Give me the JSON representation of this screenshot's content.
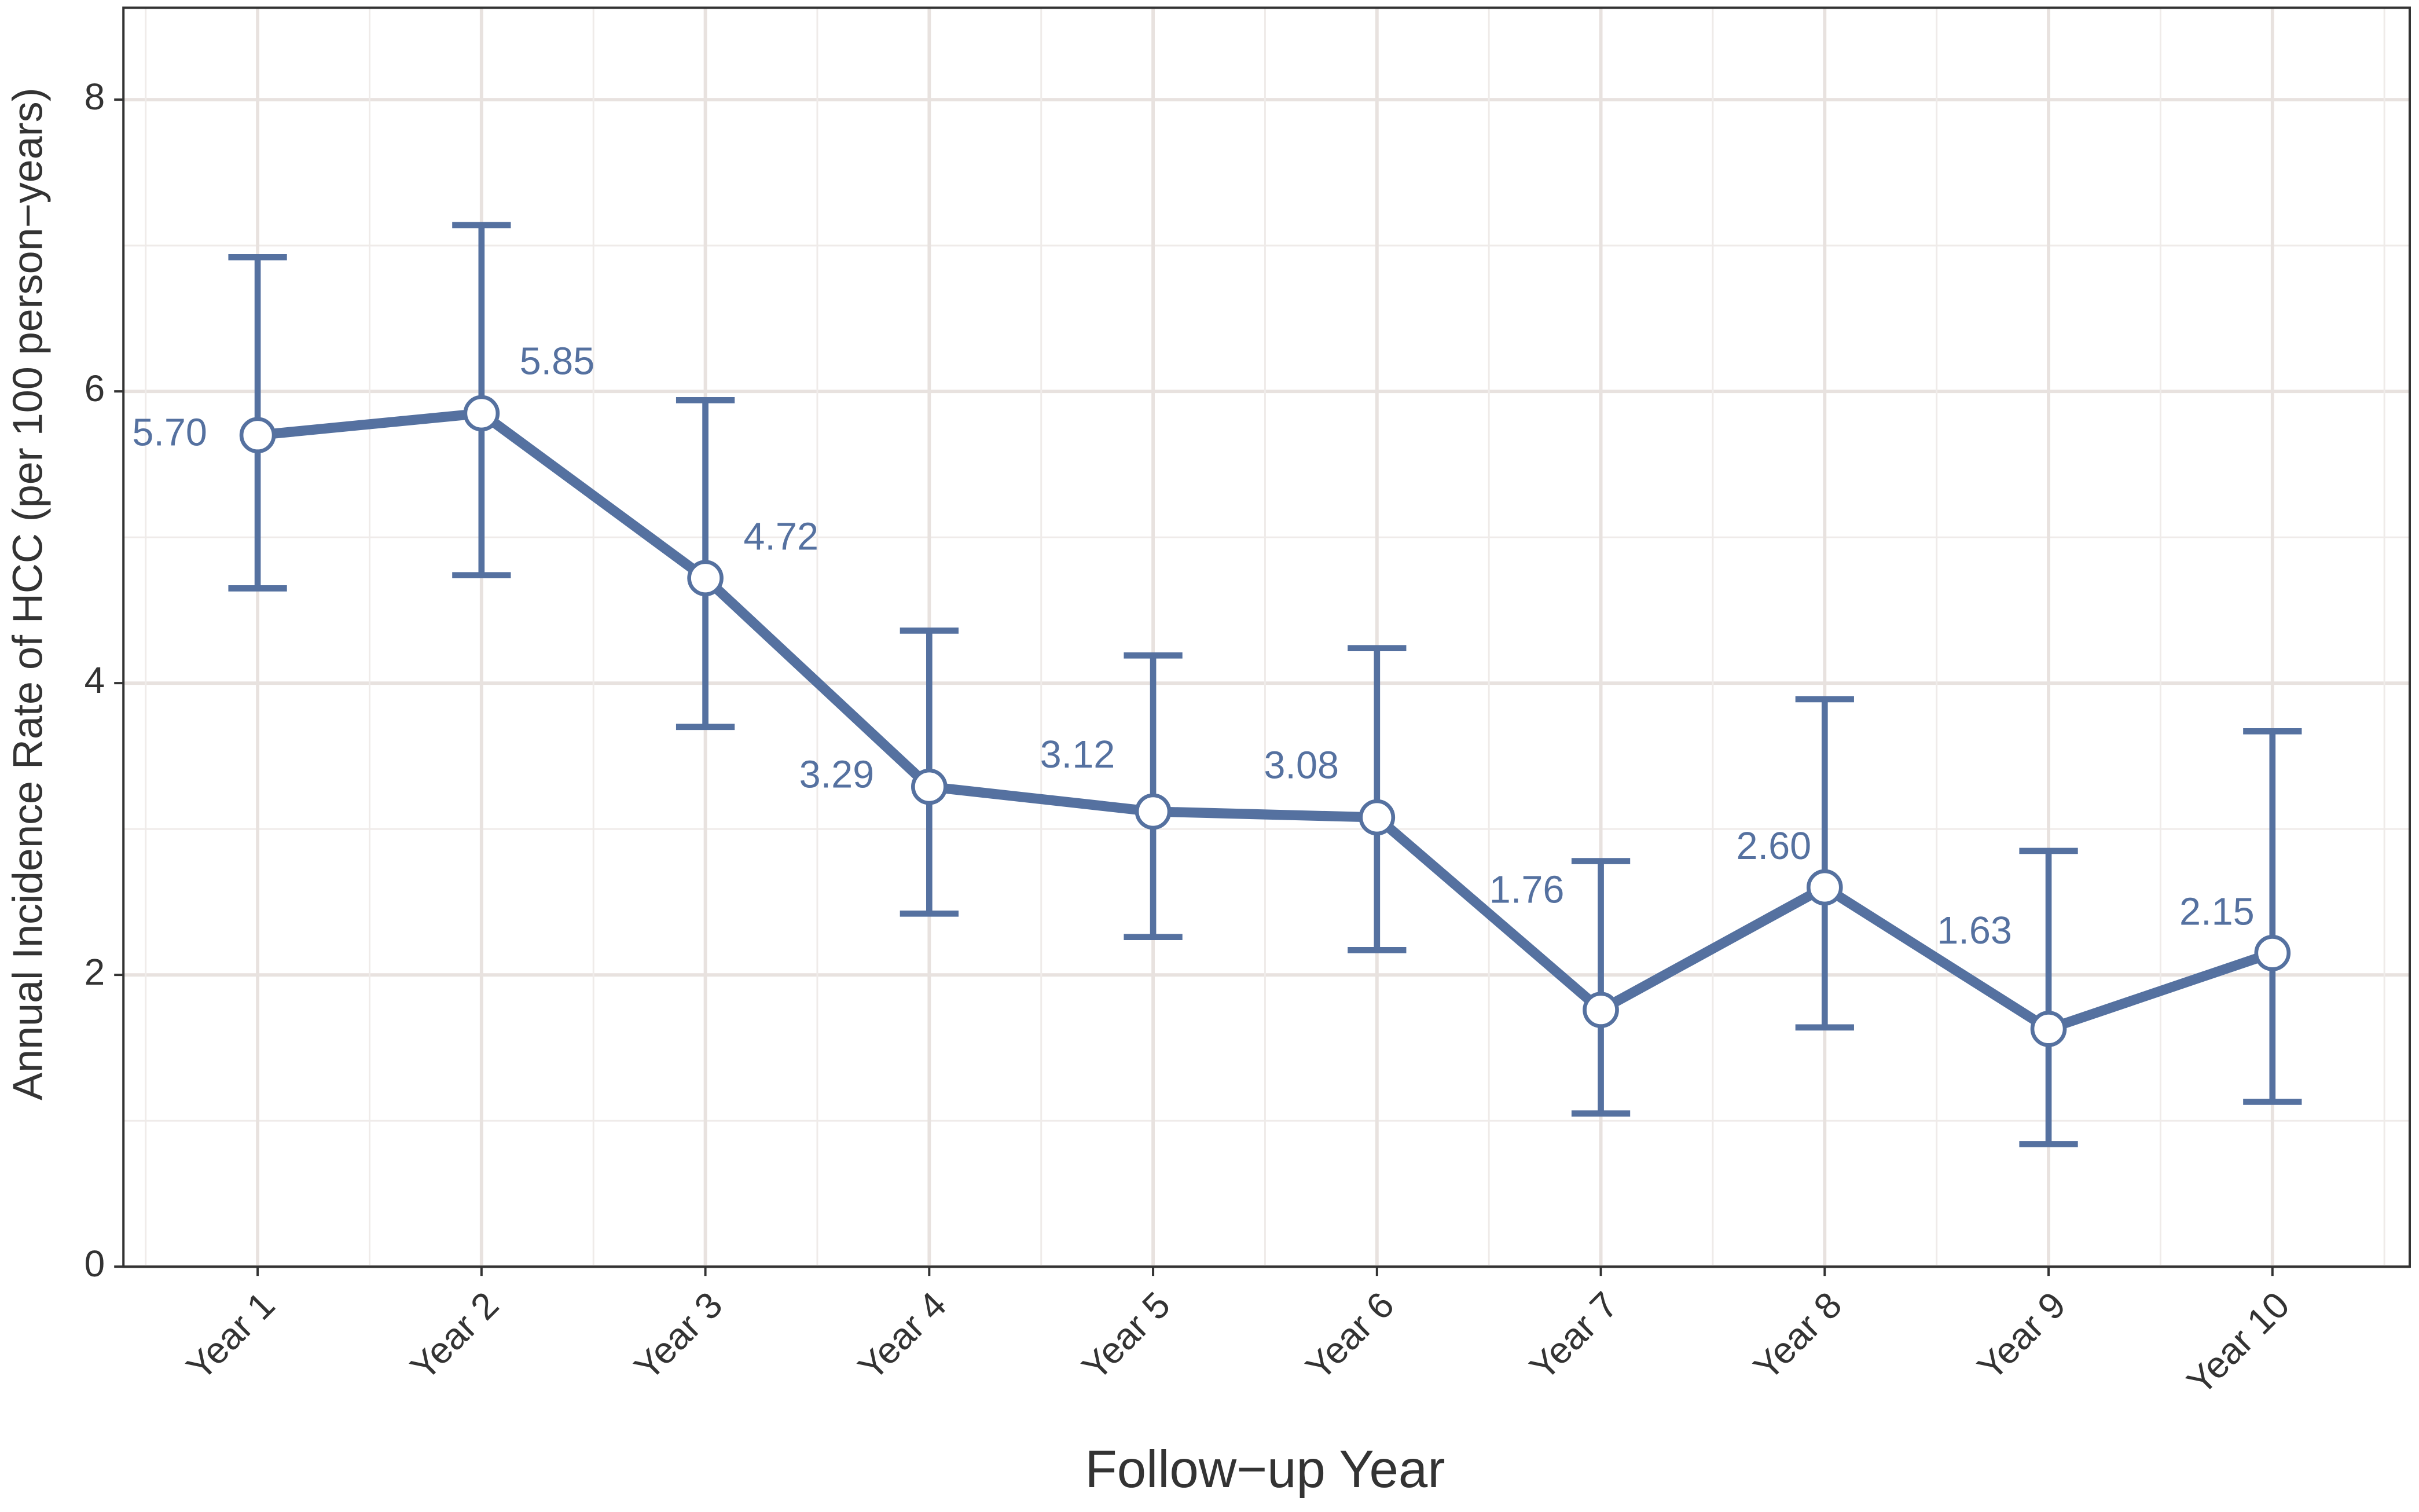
{
  "chart_data": {
    "type": "line",
    "x_label": "Follow−up Year",
    "y_label": "Annual Incidence Rate of HCC (per 100 person−years)",
    "categories": [
      "Year 1",
      "Year 2",
      "Year 3",
      "Year 4",
      "Year 5",
      "Year 6",
      "Year 7",
      "Year 8",
      "Year 9",
      "Year 10"
    ],
    "series": [
      {
        "color": "#5571a0",
        "values": [
          5.7,
          5.85,
          4.72,
          3.29,
          3.12,
          3.08,
          1.76,
          2.6,
          1.63,
          2.15
        ],
        "value_labels": [
          "5.70",
          "5.85",
          "4.72",
          "3.29",
          "3.12",
          "3.08",
          "1.76",
          "2.60",
          "1.63",
          "2.15"
        ],
        "lower": [
          4.65,
          4.74,
          3.7,
          2.42,
          2.26,
          2.17,
          1.05,
          1.64,
          0.84,
          1.13
        ],
        "upper": [
          6.92,
          7.14,
          5.94,
          4.36,
          4.19,
          4.24,
          2.78,
          3.89,
          2.85,
          3.67
        ]
      }
    ],
    "ylim": [
      0,
      8.63
    ],
    "yticks": [
      0,
      2,
      4,
      6,
      8
    ],
    "grid": true
  }
}
